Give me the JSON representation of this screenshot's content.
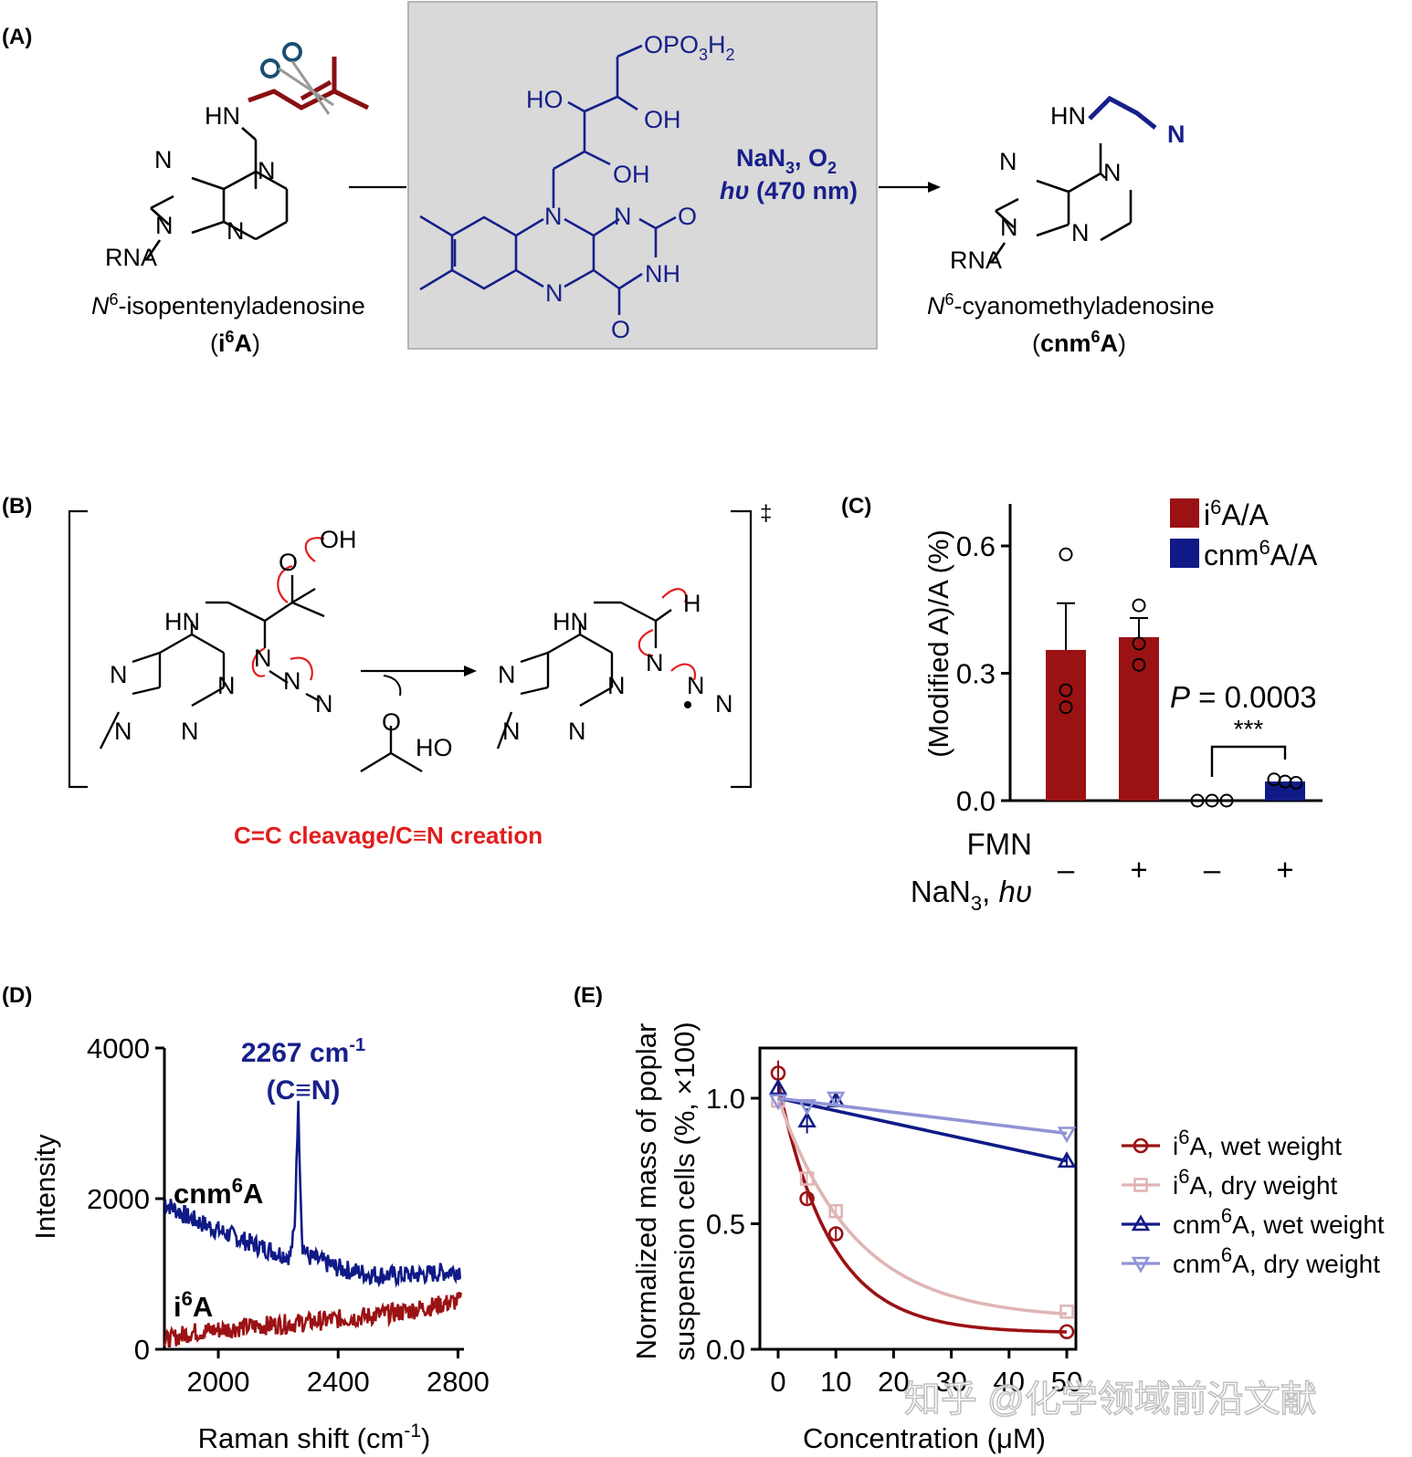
{
  "panels": {
    "A": {
      "label": "(A)",
      "reactant_name_italic": "N",
      "reactant_name_sup": "6",
      "reactant_name_rest": "-isopentenyladenosine",
      "reactant_abbr_pre": "(",
      "reactant_abbr_main": "i",
      "reactant_abbr_sup": "6",
      "reactant_abbr_end": "A",
      "reactant_abbr_close": ")",
      "product_name_italic": "N",
      "product_name_sup": "6",
      "product_name_rest": "-cyanomethyladenosine",
      "product_abbr_pre": "(",
      "product_abbr_main": "cnm",
      "product_abbr_sup": "6",
      "product_abbr_end": "A",
      "product_abbr_close": ")",
      "conditions_line1": "NaN",
      "conditions_line1_sub": "3",
      "conditions_line1_rest": ", O",
      "conditions_line1_sub2": "2",
      "conditions_line2_hv": "hυ",
      "conditions_line2_rest": " (470 nm)",
      "atoms": {
        "hn": "HN",
        "n": "N",
        "rna": "RNA",
        "opo": "OPO",
        "opo_sub": "3",
        "opo_h": "H",
        "opo_sub2": "2",
        "ho": "HO",
        "oh": "OH",
        "o": "O",
        "nh": "NH"
      }
    },
    "B": {
      "label": "(B)",
      "caption": "C=C cleavage/C≡N creation",
      "dagger": "‡",
      "atoms": {
        "oh": "OH",
        "o": "O",
        "hn": "HN",
        "n": "N",
        "h": "H",
        "ho": "HO"
      }
    },
    "C": {
      "label": "(C)"
    },
    "D": {
      "label": "(D)"
    },
    "E": {
      "label": "(E)"
    }
  },
  "watermark": "知乎 @化学领域前沿文献",
  "chart_data": [
    {
      "panel": "C",
      "type": "bar",
      "ylabel": "(Modified A)/A (%)",
      "ylim": [
        0,
        0.65
      ],
      "yticks": [
        "0.0",
        "0.3",
        "0.6"
      ],
      "ytick_values": [
        0,
        0.3,
        0.6
      ],
      "row_labels": [
        {
          "text": "FMN",
          "values": [
            "–",
            "+",
            "–",
            "+"
          ]
        },
        {
          "text": "NaN",
          "sub": "3",
          "rest": ", ",
          "italic": "hυ",
          "values": [
            "–",
            "+",
            "–",
            "+"
          ]
        }
      ],
      "series": [
        {
          "name_main": "i",
          "name_sup": "6",
          "name_rest": "A/A",
          "color": "#9b1214",
          "values": [
            0.355,
            0.385
          ],
          "errors": [
            0.11,
            0.045
          ],
          "points": [
            [
              0.58,
              0.26,
              0.22
            ],
            [
              0.46,
              0.37,
              0.32
            ]
          ]
        },
        {
          "name_main": "cnm",
          "name_sup": "6",
          "name_rest": "A/A",
          "color": "#101a86",
          "values": [
            0.0,
            0.045
          ],
          "errors": [
            0.0,
            0.004
          ],
          "points": [
            [
              0.0,
              0.0,
              0.0
            ],
            [
              0.05,
              0.045,
              0.042
            ]
          ]
        }
      ],
      "annotation_p_italic": "P",
      "annotation_p_rest": " = 0.0003",
      "annotation_stars": "***",
      "legend_position": "top-right"
    },
    {
      "panel": "D",
      "type": "line",
      "xlabel": "Raman shift (cm",
      "xlabel_sup": "-1",
      "xlabel_close": ")",
      "ylabel": "Intensity",
      "xlim": [
        1820,
        2820
      ],
      "ylim": [
        0,
        4000
      ],
      "xticks": [
        2000,
        2400,
        2800
      ],
      "yticks": [
        0,
        2000,
        4000
      ],
      "peak_label": "2267 cm",
      "peak_label_sup": "-1",
      "peak_assign": "(C≡N)",
      "series": [
        {
          "name_main": "cnm",
          "name_sup": "6",
          "name_rest": "A",
          "color": "#101a86",
          "x": [
            1820,
            1900,
            2000,
            2100,
            2200,
            2240,
            2255,
            2262,
            2267,
            2272,
            2280,
            2300,
            2400,
            2500,
            2600,
            2700,
            2800
          ],
          "y": [
            1950,
            1750,
            1580,
            1420,
            1280,
            1240,
            1600,
            2700,
            3200,
            2500,
            1400,
            1230,
            1080,
            1000,
            980,
            1000,
            1050
          ]
        },
        {
          "name_main": "i",
          "name_sup": "6",
          "name_rest": "A",
          "color": "#9b1214",
          "x": [
            1820,
            1900,
            2000,
            2100,
            2200,
            2300,
            2400,
            2500,
            2600,
            2700,
            2800
          ],
          "y": [
            100,
            220,
            260,
            300,
            330,
            360,
            400,
            440,
            490,
            560,
            640
          ]
        }
      ]
    },
    {
      "panel": "E",
      "type": "scatter",
      "xlabel": "Concentration (μM)",
      "ylabel": "Normalized mass of poplar",
      "ylabel2": "suspension cells (%, ×100)",
      "xlim": [
        0,
        50
      ],
      "ylim": [
        0,
        1.2
      ],
      "xticks": [
        0,
        10,
        20,
        30,
        40,
        50
      ],
      "yticks": [
        "0.0",
        "0.5",
        "1.0"
      ],
      "ytick_values": [
        0,
        0.5,
        1.0
      ],
      "legend_position": "right",
      "series": [
        {
          "name_main": "i",
          "name_sup": "6",
          "name_rest": "A, wet weight",
          "color": "#9b1214",
          "marker": "circle",
          "x": [
            0,
            5,
            10,
            50
          ],
          "y": [
            1.1,
            0.6,
            0.46,
            0.07
          ],
          "errors": [
            0.05,
            0.02,
            0.03,
            0.01
          ],
          "fit": {
            "top": 1.06,
            "bottom": 0.065,
            "k": 0.11
          }
        },
        {
          "name_main": "i",
          "name_sup": "6",
          "name_rest": "A, dry weight",
          "color": "#e0b5b5",
          "marker": "square",
          "x": [
            0,
            5,
            10,
            50
          ],
          "y": [
            0.99,
            0.68,
            0.55,
            0.15
          ],
          "errors": [
            0.02,
            0.02,
            0.02,
            0.01
          ],
          "fit": {
            "top": 1.0,
            "bottom": 0.12,
            "k": 0.075
          }
        },
        {
          "name_main": "cnm",
          "name_sup": "6",
          "name_rest": "A, wet weight",
          "color": "#101a86",
          "marker": "triangle-up",
          "x": [
            0,
            5,
            10,
            50
          ],
          "y": [
            1.04,
            0.91,
            0.99,
            0.75
          ],
          "errors": [
            0.03,
            0.05,
            0.02,
            0.02
          ],
          "fit_line": [
            [
              0,
              1.0
            ],
            [
              50,
              0.75
            ]
          ]
        },
        {
          "name_main": "cnm",
          "name_sup": "6",
          "name_rest": "A, dry weight",
          "color": "#8f94d6",
          "marker": "triangle-down",
          "x": [
            0,
            5,
            10,
            50
          ],
          "y": [
            0.99,
            0.97,
            1.0,
            0.86
          ],
          "errors": [
            0.01,
            0.01,
            0.01,
            0.01
          ],
          "fit_line": [
            [
              0,
              1.0
            ],
            [
              50,
              0.86
            ]
          ]
        }
      ]
    }
  ]
}
